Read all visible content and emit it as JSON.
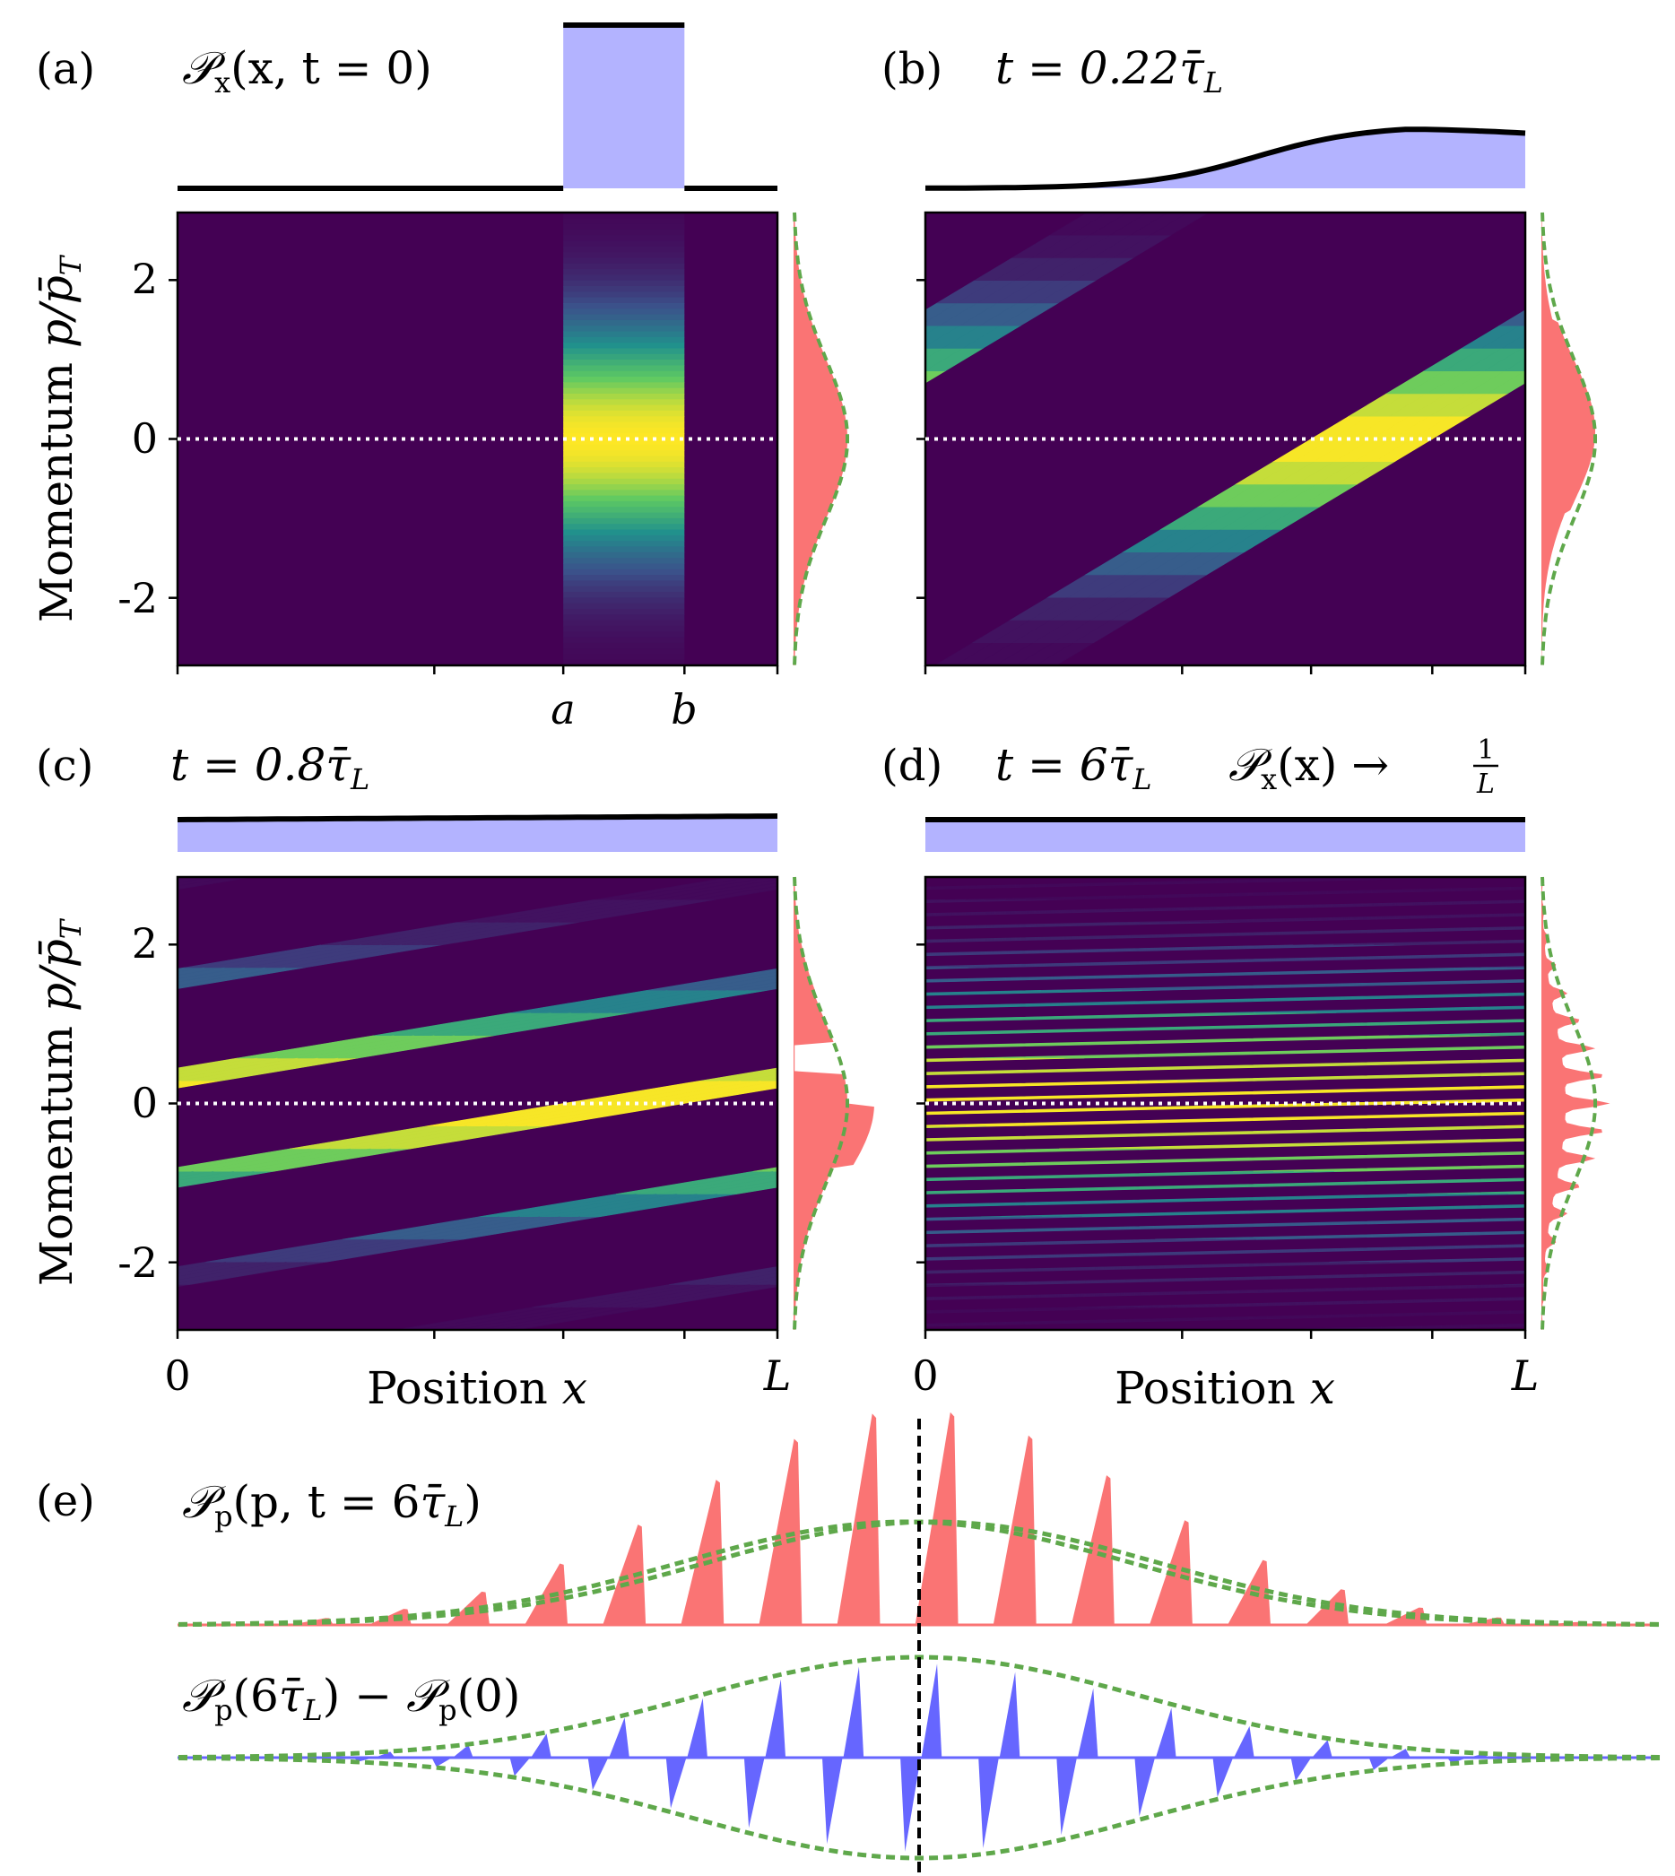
{
  "colors": {
    "density_fill": "#b3b3ff",
    "momentum_fill": "#fa7474",
    "difference_fill": "#6666ff",
    "gaussian_dashed": "#5fa84b",
    "heatmap_low": "#440154",
    "heatmap_mid": "#21918c",
    "heatmap_high": "#fde725",
    "axis": "#000000"
  },
  "chart_data": [
    {
      "panel": "(a)",
      "type": "heatmap",
      "title_parts": [
        "𝒫",
        "x",
        "(x, t = 0)"
      ],
      "xlabel": "",
      "ylabel_parts": [
        "Momentum ",
        "p/p̄",
        "T"
      ],
      "xticks": [
        "a",
        "b"
      ],
      "yticks": [
        "2",
        "0",
        "-2"
      ],
      "x_range": [
        0,
        1
      ],
      "ylim": [
        -2.85,
        2.85
      ],
      "a": 0.643,
      "b": 0.845,
      "shear": 0,
      "marginal_x": "box from a to b",
      "marginal_p": "gaussian"
    },
    {
      "panel": "(b)",
      "type": "heatmap",
      "title_parts": [
        "t = 0.22",
        "τ̄",
        "L"
      ],
      "xlabel": "",
      "ylabel_parts": [],
      "xticks": [],
      "yticks": [],
      "x_range": [
        0,
        1
      ],
      "ylim": [
        -2.85,
        2.85
      ],
      "a": 0.643,
      "b": 0.845,
      "shear": 0.22,
      "marginal_x": "smooth rise",
      "marginal_p": "skewed gaussian"
    },
    {
      "panel": "(c)",
      "type": "heatmap",
      "title_parts": [
        "t = 0.8",
        "τ̄",
        "L"
      ],
      "xlabel": "Position x",
      "xlabel_parts": [
        "Position ",
        "x"
      ],
      "ylabel_parts": [
        "Momentum ",
        "p/p̄",
        "T"
      ],
      "xticks": [
        "0",
        "L"
      ],
      "yticks": [
        "2",
        "0",
        "-2"
      ],
      "x_range": [
        0,
        1
      ],
      "ylim": [
        -2.85,
        2.85
      ],
      "a": 0.643,
      "b": 0.845,
      "shear": 0.8,
      "marginal_x": "nearly uniform",
      "marginal_p": "gapped gaussian"
    },
    {
      "panel": "(d)",
      "type": "heatmap",
      "title_parts": [
        "t = 6",
        "τ̄",
        "L"
      ],
      "annotation_parts": [
        "𝒫",
        "x",
        "(x) → ",
        "1",
        "L"
      ],
      "xlabel": "Position x",
      "xlabel_parts": [
        "Position ",
        "x"
      ],
      "ylabel_parts": [],
      "xticks": [
        "0",
        "L"
      ],
      "yticks": [],
      "x_range": [
        0,
        1
      ],
      "ylim": [
        -2.85,
        2.85
      ],
      "a": 0.643,
      "b": 0.845,
      "shear": 6,
      "marginal_x": "uniform",
      "marginal_p": "comb of spikes"
    },
    {
      "panel": "(e)",
      "type": "area",
      "title_parts": [
        "𝒫",
        "p",
        "(p, t = 6",
        "τ̄",
        "L",
        ")"
      ],
      "subtitle_parts": [
        "𝒫",
        "p",
        "(6",
        "τ̄",
        "L",
        ") − ",
        "𝒫",
        "p",
        "(0)"
      ],
      "x_range": [
        -3.3,
        3.3
      ],
      "spike_spacing": 0.348,
      "series": [
        {
          "name": "momentum distribution at t = 6τ̄L",
          "style": "red spikes over dashed gaussian"
        },
        {
          "name": "difference from t = 0",
          "style": "blue alternating spikes within dashed gaussian envelope"
        }
      ],
      "reference_line_x": 0
    }
  ]
}
